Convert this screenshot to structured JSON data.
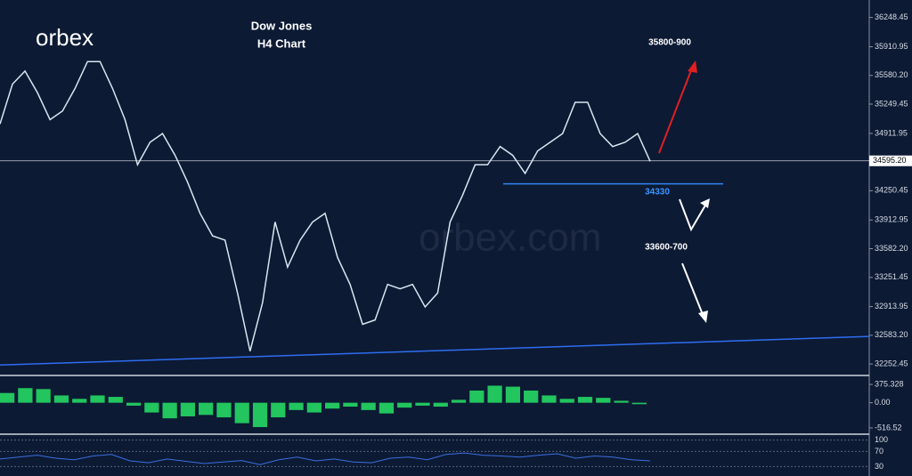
{
  "chart_data": {
    "type": "line",
    "title": "Dow Jones",
    "subtitle": "H4 Chart",
    "logo": "orbex",
    "watermark": "orbex.com",
    "color": "#d8e6f0",
    "values": [
      35020,
      35480,
      35630,
      35380,
      35070,
      35170,
      35430,
      35740,
      35740,
      35430,
      35070,
      34550,
      34810,
      34910,
      34660,
      34350,
      33990,
      33730,
      33680,
      33070,
      32400,
      32960,
      33890,
      33370,
      33680,
      33890,
      33990,
      33480,
      33170,
      32710,
      32760,
      33170,
      33120,
      33170,
      32910,
      33070,
      33890,
      34200,
      34550,
      34550,
      34760,
      34660,
      34450,
      34710,
      34810,
      34910,
      35270,
      35270,
      34910,
      34760,
      34810,
      34910,
      34590
    ],
    "ylim": [
      32120,
      36450
    ],
    "yticks": [
      {
        "value": 36248.45,
        "label": "36248.45"
      },
      {
        "value": 35910.95,
        "label": "35910.95"
      },
      {
        "value": 35580.2,
        "label": "35580.20"
      },
      {
        "value": 35249.45,
        "label": "35249.45"
      },
      {
        "value": 34911.95,
        "label": "34911.95"
      },
      {
        "value": 34250.45,
        "label": "34250.45"
      },
      {
        "value": 33912.95,
        "label": "33912.95"
      },
      {
        "value": 33582.2,
        "label": "33582.20"
      },
      {
        "value": 33251.45,
        "label": "33251.45"
      },
      {
        "value": 32913.95,
        "label": "32913.95"
      },
      {
        "value": 32583.2,
        "label": "32583.20"
      },
      {
        "value": 32252.45,
        "label": "32252.45"
      }
    ],
    "current_price": {
      "value": 34595.2,
      "label": "34595.20"
    },
    "support": {
      "value": 34330,
      "label": "34330"
    },
    "trendline": [
      32240,
      32570
    ],
    "annotations": [
      "35800-900",
      "33600-700"
    ],
    "macd": {
      "values": [
        200,
        300,
        280,
        150,
        80,
        150,
        120,
        -60,
        -200,
        -320,
        -280,
        -250,
        -300,
        -420,
        -500,
        -300,
        -150,
        -200,
        -120,
        -80,
        -150,
        -220,
        -100,
        -60,
        -80,
        60,
        250,
        350,
        330,
        250,
        150,
        80,
        120,
        100,
        40,
        -30
      ],
      "ylim": [
        -627,
        523
      ],
      "yticks": [
        {
          "value": 375.328,
          "label": "375.328"
        },
        {
          "value": 0,
          "label": "0.00"
        },
        {
          "value": -516.52,
          "label": "-516.52"
        }
      ]
    },
    "rsi": {
      "values": [
        50,
        55,
        60,
        52,
        48,
        58,
        62,
        45,
        40,
        50,
        44,
        38,
        42,
        46,
        35,
        48,
        55,
        45,
        50,
        42,
        40,
        52,
        55,
        48,
        62,
        66,
        60,
        58,
        55,
        60,
        64,
        52,
        58,
        55,
        48,
        45
      ],
      "ylim": [
        5,
        111
      ],
      "yticks": [
        100,
        70,
        30
      ]
    }
  }
}
